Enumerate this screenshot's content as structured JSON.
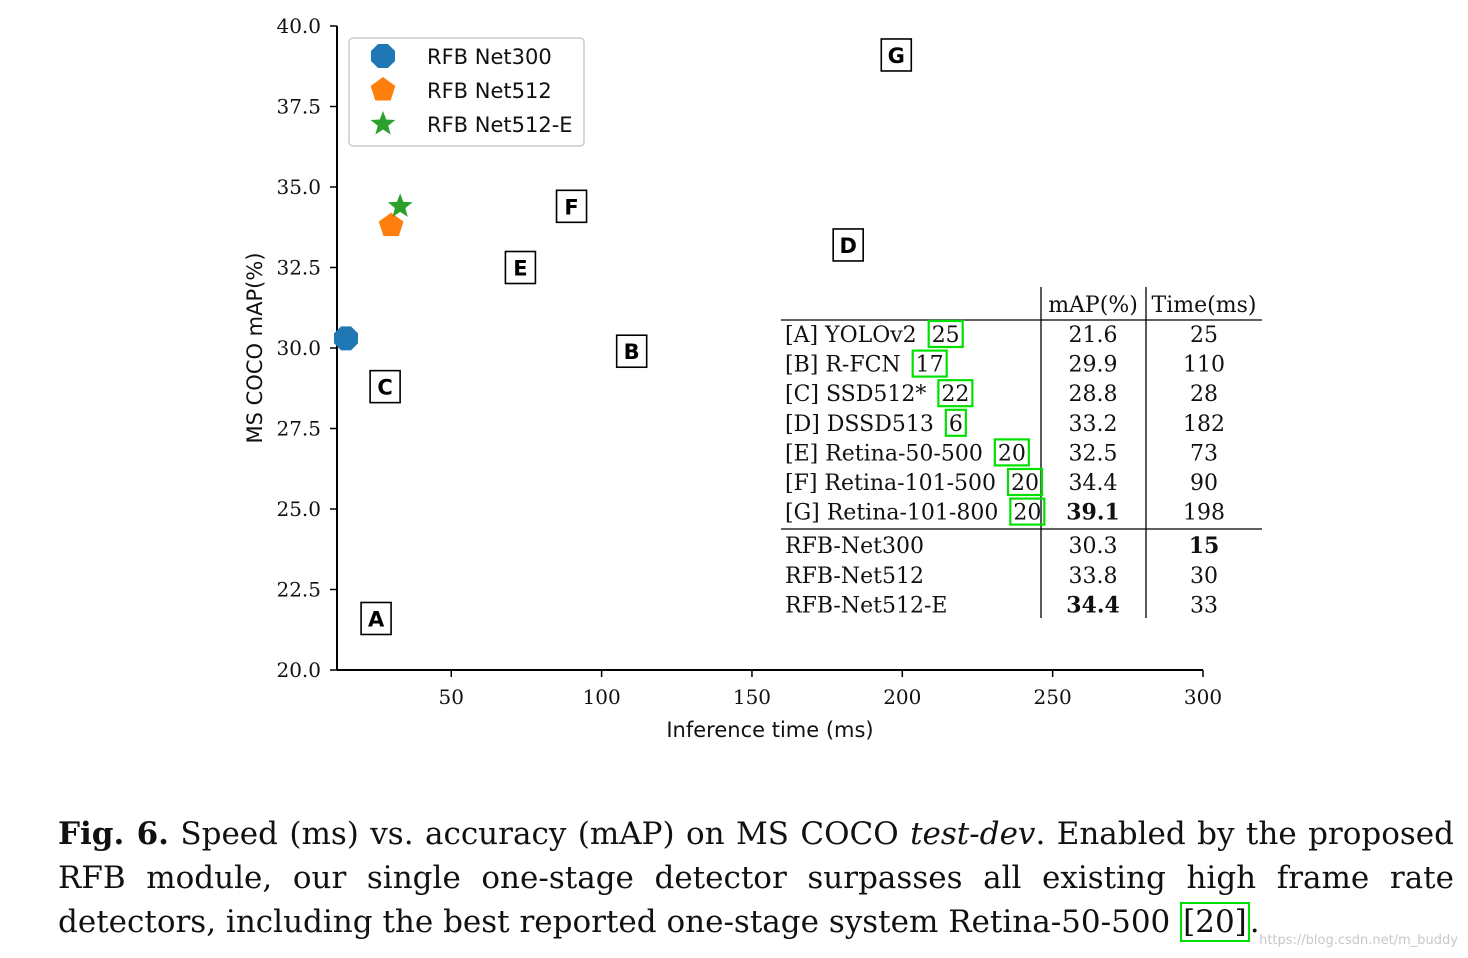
{
  "chart_data": {
    "type": "scatter",
    "xlabel": "Inference time (ms)",
    "ylabel": "MS COCO mAP(%)",
    "xlim": [
      12,
      300
    ],
    "ylim": [
      20.0,
      40.0
    ],
    "xticks": [
      "50",
      "100",
      "150",
      "200",
      "250",
      "300"
    ],
    "yticks": [
      "20.0",
      "22.5",
      "25.0",
      "27.5",
      "30.0",
      "32.5",
      "35.0",
      "37.5",
      "40.0"
    ],
    "grid": false,
    "legend_position": "top-left",
    "series": [
      {
        "name": "RFB Net300",
        "marker": "octagon",
        "color": "#1f77b4",
        "x": [
          15
        ],
        "y": [
          30.3
        ]
      },
      {
        "name": "RFB Net512",
        "marker": "pentagon",
        "color": "#ff7f0e",
        "x": [
          30
        ],
        "y": [
          33.8
        ]
      },
      {
        "name": "RFB Net512-E",
        "marker": "star",
        "color": "#2ca02c",
        "x": [
          33
        ],
        "y": [
          34.4
        ]
      }
    ],
    "labeled_points": [
      {
        "label": "A",
        "x": 25,
        "y": 21.6
      },
      {
        "label": "B",
        "x": 110,
        "y": 29.9
      },
      {
        "label": "C",
        "x": 28,
        "y": 28.8
      },
      {
        "label": "D",
        "x": 182,
        "y": 33.2
      },
      {
        "label": "E",
        "x": 73,
        "y": 32.5
      },
      {
        "label": "F",
        "x": 90,
        "y": 34.4
      },
      {
        "label": "G",
        "x": 198,
        "y": 39.1
      }
    ],
    "table": {
      "headers": [
        "",
        "mAP(%)",
        "Time(ms)"
      ],
      "rows": [
        {
          "method": "[A] YOLOv2",
          "cite": "25",
          "map": "21.6",
          "time": "25"
        },
        {
          "method": "[B] R-FCN",
          "cite": "17",
          "map": "29.9",
          "time": "110"
        },
        {
          "method": "[C] SSD512*",
          "cite": "22",
          "map": "28.8",
          "time": "28"
        },
        {
          "method": "[D] DSSD513",
          "cite": "6",
          "map": "33.2",
          "time": "182"
        },
        {
          "method": "[E] Retina-50-500",
          "cite": "20",
          "map": "32.5",
          "time": "73"
        },
        {
          "method": "[F] Retina-101-500",
          "cite": "20",
          "map": "34.4",
          "time": "90"
        },
        {
          "method": "[G] Retina-101-800",
          "cite": "20",
          "map": "39.1",
          "time": "198",
          "bold_map": true
        },
        {
          "method": "RFB-Net300",
          "cite": "",
          "map": "30.3",
          "time": "15",
          "bold_time": true
        },
        {
          "method": "RFB-Net512",
          "cite": "",
          "map": "33.8",
          "time": "30"
        },
        {
          "method": "RFB-Net512-E",
          "cite": "",
          "map": "34.4",
          "time": "33",
          "bold_map": true
        }
      ]
    }
  },
  "caption": {
    "fig_label": "Fig. 6.",
    "text_before": " Speed (ms) vs. accuracy (mAP) on MS COCO ",
    "emphasis": "test-dev",
    "text_after": ". Enabled by the proposed RFB module, our single one-stage detector surpasses all existing high frame rate detectors, including the best reported one-stage system Retina-50-500 ",
    "cite": "[20]",
    "end": "."
  },
  "watermark": "https://blog.csdn.net/m_buddy"
}
